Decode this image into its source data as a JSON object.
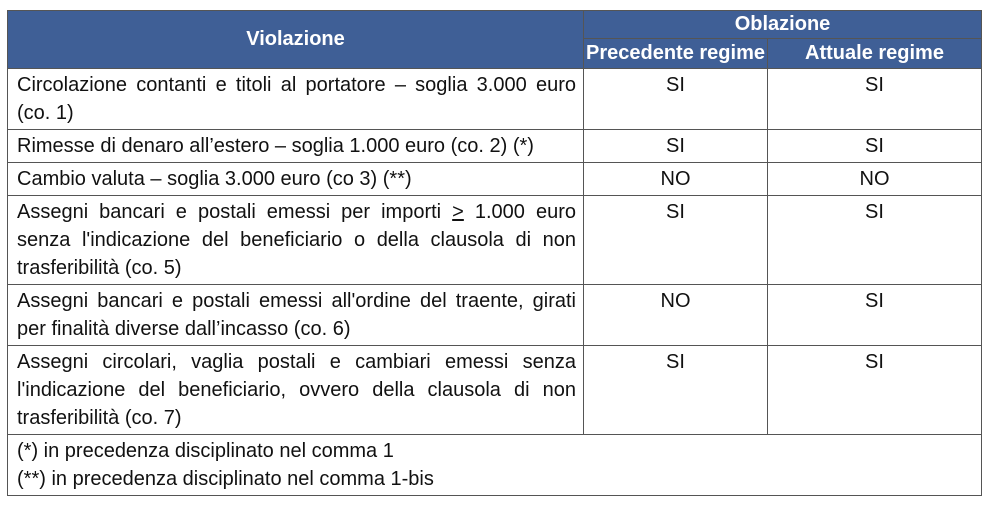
{
  "table": {
    "header": {
      "violazione": "Violazione",
      "oblazione": "Oblazione",
      "precedente": "Precedente regime",
      "attuale": "Attuale regime"
    },
    "rows": [
      {
        "violazione": "Circolazione contanti e titoli al portatore – soglia 3.000 euro (co. 1)",
        "precedente": "SI",
        "attuale": "SI"
      },
      {
        "violazione": "Rimesse di denaro all’estero – soglia 1.000 euro (co. 2) (*)",
        "precedente": "SI",
        "attuale": "SI"
      },
      {
        "violazione": "Cambio valuta – soglia 3.000 euro (co 3) (**)",
        "precedente": "NO",
        "attuale": "NO"
      },
      {
        "violazione_pre": "Assegni bancari e postali emessi per importi ",
        "violazione_sym": ">",
        "violazione_post": " 1.000 euro senza l'indicazione del beneficiario o della clausola di non trasferibilità (co. 5)",
        "precedente": "SI",
        "attuale": "SI"
      },
      {
        "violazione": "Assegni bancari e postali emessi all'ordine del traente, girati per finalità diverse dall’incasso (co. 6)",
        "precedente": "NO",
        "attuale": "SI"
      },
      {
        "violazione": "Assegni circolari, vaglia postali e cambiari emessi senza l'indicazione del beneficiario, ovvero della clausola di non trasferibilità (co. 7)",
        "precedente": "SI",
        "attuale": "SI"
      }
    ],
    "notes": [
      "(*) in precedenza disciplinato nel comma 1",
      "(**) in precedenza disciplinato nel comma 1-bis"
    ]
  },
  "colors": {
    "header_bg": "#3f5f96",
    "header_text": "#ffffff",
    "border": "#555555"
  }
}
